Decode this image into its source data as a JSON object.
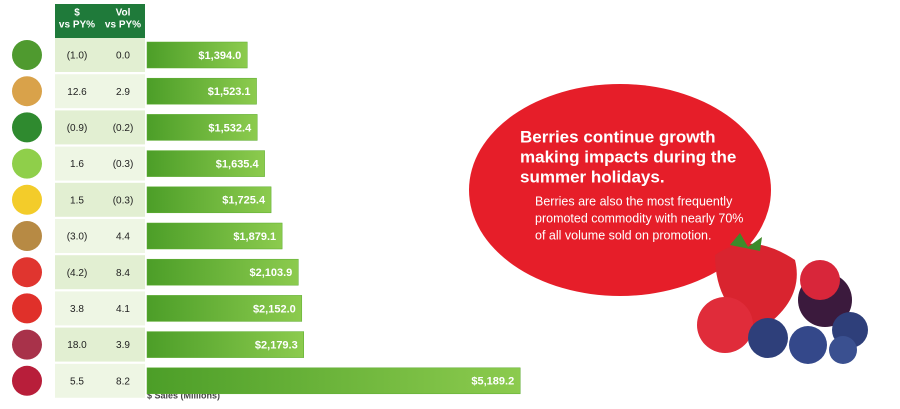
{
  "chart_data": {
    "type": "bar",
    "orientation": "horizontal",
    "x_label": "$ Sales (Millions)",
    "table_headers": [
      [
        "$",
        "vs PY%"
      ],
      [
        "Vol",
        "vs PY%"
      ]
    ],
    "dollar_vs_py": [
      "(1.0)",
      "12.6",
      "(0.9)",
      "1.6",
      "1.5",
      "(3.0)",
      "(4.2)",
      "3.8",
      "18.0",
      "5.5"
    ],
    "vol_vs_py": [
      "0.0",
      "2.9",
      "(0.2)",
      "(0.3)",
      "(0.3)",
      "4.4",
      "8.4",
      "4.1",
      "3.9",
      "8.2"
    ],
    "values": [
      1394.0,
      1523.1,
      1532.4,
      1635.4,
      1725.4,
      1879.1,
      2103.9,
      2152.0,
      2179.3,
      5189.2
    ],
    "value_labels": [
      "$1,394.0",
      "$1,523.1",
      "$1,532.4",
      "$1,635.4",
      "$1,725.4",
      "$1,879.1",
      "$2,103.9",
      "$2,152.0",
      "$2,179.3",
      "$5,189.2"
    ],
    "xlim": [
      0,
      5200
    ],
    "color": "#5aab2e",
    "callout": {
      "title": [
        "Berries continue growth",
        "making impacts during the",
        "summer holidays."
      ],
      "body": [
        "Berries are also the most frequently",
        "promoted commodity with nearly 70%",
        "of all volume sold on promotion."
      ]
    }
  }
}
